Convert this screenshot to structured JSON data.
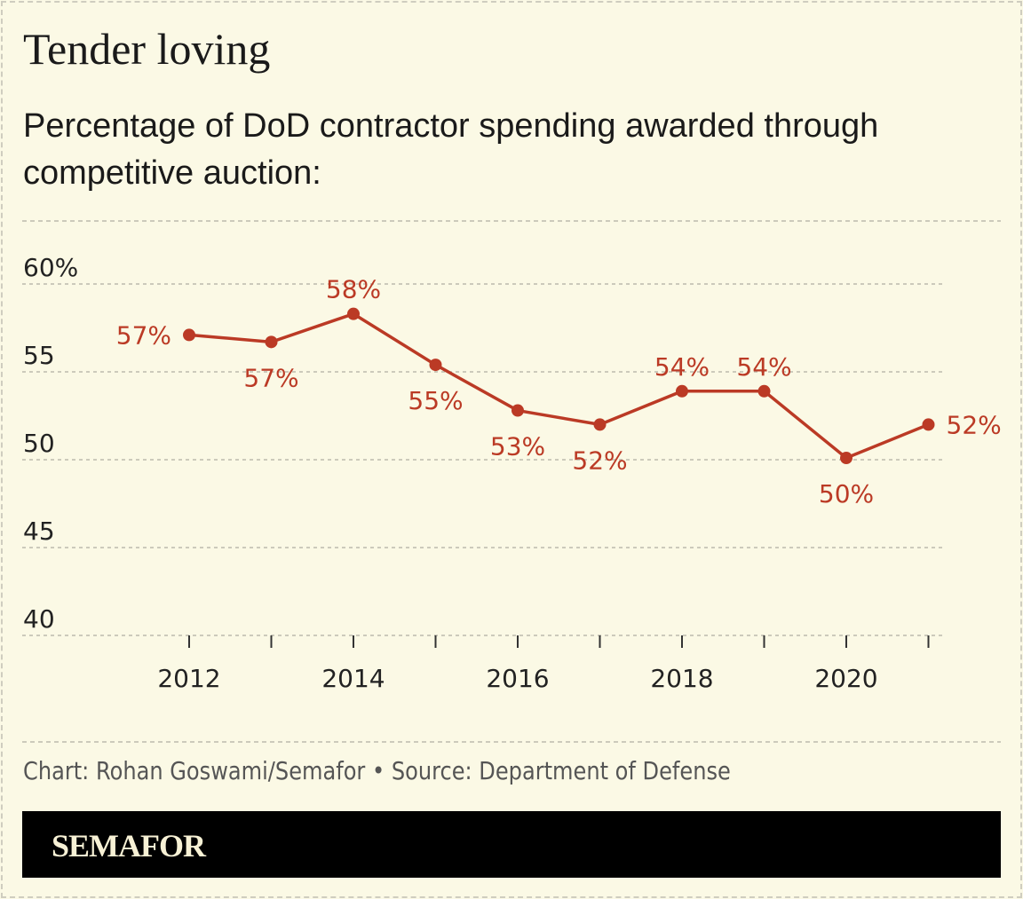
{
  "title": "Tender loving",
  "subtitle": "Percentage of DoD contractor spending awarded through competitive auction:",
  "credit": "Chart: Rohan Goswami/Semafor • Source: Department of Defense",
  "brand": "SEMAFOR",
  "colors": {
    "line": "#bb3a25",
    "background": "#fbf9e5",
    "grid": "#bdbbad"
  },
  "chart_data": {
    "type": "line",
    "x": [
      2012,
      2013,
      2014,
      2015,
      2016,
      2017,
      2018,
      2019,
      2020,
      2021
    ],
    "series": [
      {
        "values": [
          57.1,
          56.7,
          58.3,
          55.4,
          52.8,
          52.0,
          53.9,
          53.9,
          50.1,
          52.0
        ]
      }
    ],
    "data_labels": [
      "57%",
      "57%",
      "58%",
      "55%",
      "53%",
      "52%",
      "54%",
      "54%",
      "50%",
      "52%"
    ],
    "ylim": [
      40,
      60
    ],
    "yticks": [
      60,
      55,
      50,
      45,
      40
    ],
    "ytick_labels": [
      "60%",
      "55",
      "50",
      "45",
      "40"
    ],
    "xticks": [
      2012,
      2014,
      2016,
      2018,
      2020
    ],
    "xtick_labels": [
      "2012",
      "2014",
      "2016",
      "2018",
      "2020"
    ],
    "grid": true
  }
}
